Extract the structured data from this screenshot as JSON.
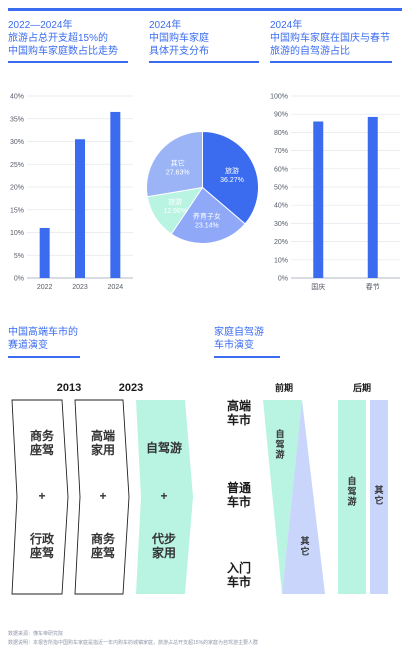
{
  "panels": {
    "travel_share": {
      "title": "2022—2024年\n旅游占总开支超15%的\n中国购车家庭数占比走势",
      "chart_data": {
        "type": "bar",
        "categories": [
          "2022",
          "2023",
          "2024"
        ],
        "values": [
          11,
          30.5,
          36.5
        ],
        "y_ticks": [
          "0%",
          "5%",
          "10%",
          "15%",
          "20%",
          "25%",
          "30%",
          "35%",
          "40%"
        ],
        "ylim": [
          0,
          40
        ],
        "grid": true,
        "color": "#3b6cf0"
      }
    },
    "spending": {
      "title": "2024年\n中国购车家庭\n具体开支分布",
      "chart_data": {
        "type": "pie",
        "slices": [
          {
            "label": "旅游",
            "value_label": "36.27%",
            "value": 36.27,
            "color": "#3b6cf0"
          },
          {
            "label": "养育子女",
            "value_label": "23.14%",
            "value": 23.14,
            "color": "#8fa9f8"
          },
          {
            "label": "旅游",
            "value_label": "12.96%",
            "value": 12.96,
            "color": "#b9f3e1"
          },
          {
            "label": "其它",
            "value_label": "27.63%",
            "value": 27.63,
            "color": "#9ab4f6"
          }
        ]
      }
    },
    "holiday": {
      "title": "2024年\n中国购车家庭在国庆与春节\n旅游的自驾游占比",
      "chart_data": {
        "type": "bar",
        "categories": [
          "国庆",
          "春节"
        ],
        "values": [
          86,
          88.5
        ],
        "y_ticks": [
          "0%",
          "10%",
          "20%",
          "30%",
          "40%",
          "50%",
          "60%",
          "70%",
          "80%",
          "90%",
          "100%"
        ],
        "ylim": [
          0,
          100
        ],
        "grid": true,
        "color": "#3b6cf0"
      }
    }
  },
  "evolution": {
    "title": "中国高端车市的\n赛道演变",
    "years": [
      "2013",
      "2023"
    ],
    "col_2013": {
      "top": "商务\n座驾",
      "plus": "+",
      "bottom": "行政\n座驾"
    },
    "col_2023": {
      "top": "高端\n家用",
      "plus": "+",
      "bottom": "商务\n座驾"
    },
    "col_now": {
      "top": "自驾游",
      "plus": "+",
      "bottom": "代步\n家用"
    }
  },
  "family": {
    "title": "家庭自驾游\n车市演变",
    "phases": [
      "前期",
      "后期"
    ],
    "markets": [
      "高端\n车市",
      "普通\n车市",
      "入门\n车市"
    ],
    "early": {
      "self_drive": "自\n驾\n游",
      "other": "其\n它"
    },
    "late": {
      "self_drive": "自\n驾\n游",
      "other": "其\n它"
    },
    "colors": {
      "mint": "#b9f3e1",
      "lavender": "#c9d5fb"
    }
  },
  "footer": {
    "line1": "数据来源：懂车帝研究院",
    "line2": "数据说明：本报告所指中国购车家庭是指近一年内购车的城镇家庭，旅游占总开支超15%的家庭为自驾游主要人群"
  }
}
